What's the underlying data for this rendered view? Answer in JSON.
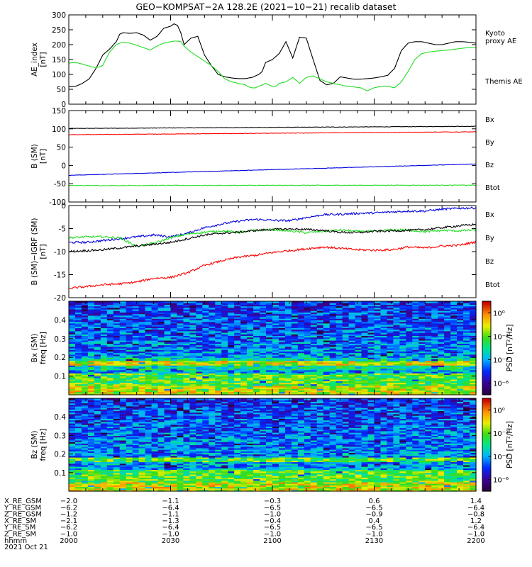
{
  "title": "GEO−KOMPSAT−2A 128.2E (2021−10−21) recalib dataset",
  "colors": {
    "black": "#000000",
    "red": "#ff0000",
    "green": "#22dd22",
    "blue": "#0000dd"
  },
  "chart_data": [
    {
      "id": "ae",
      "type": "line",
      "ylabel": "AE_index\n[nT]",
      "ylim": [
        0,
        300
      ],
      "yticks": [
        0,
        50,
        100,
        150,
        200,
        250,
        300
      ],
      "x": [
        0,
        2,
        4,
        6,
        8,
        10,
        12,
        14,
        15,
        16,
        18,
        20,
        22,
        24,
        26,
        28,
        30,
        31,
        32,
        33,
        34,
        36,
        38,
        40,
        42,
        44,
        46,
        48,
        50,
        52,
        53,
        54,
        55,
        56,
        57,
        58,
        60,
        61,
        62,
        64,
        66,
        68,
        70,
        72,
        74,
        76,
        78,
        80,
        82,
        84,
        86,
        88,
        90,
        92,
        94,
        96,
        98,
        100,
        102,
        104,
        106,
        108,
        110,
        112,
        114,
        116,
        118,
        120
      ],
      "series": [
        {
          "name": "Themis AE",
          "color": "#000000",
          "values": [
            58,
            60,
            70,
            85,
            120,
            165,
            185,
            210,
            235,
            240,
            238,
            240,
            232,
            215,
            228,
            255,
            262,
            270,
            265,
            240,
            200,
            222,
            228,
            165,
            130,
            100,
            92,
            88,
            86,
            86,
            88,
            90,
            95,
            100,
            110,
            140,
            150,
            160,
            170,
            210,
            155,
            225,
            222,
            150,
            80,
            65,
            70,
            92,
            88,
            84,
            84,
            86,
            88,
            92,
            97,
            120,
            180,
            205,
            210,
            210,
            205,
            200,
            200,
            205,
            210,
            210,
            208,
            205
          ]
        },
        {
          "name": "Kyoto proxy AE",
          "color": "#22dd22",
          "values": [
            138,
            140,
            135,
            128,
            122,
            130,
            175,
            200,
            205,
            208,
            205,
            198,
            190,
            182,
            195,
            205,
            210,
            212,
            212,
            210,
            195,
            175,
            160,
            145,
            130,
            110,
            85,
            75,
            70,
            65,
            58,
            55,
            55,
            60,
            65,
            70,
            60,
            60,
            70,
            75,
            90,
            70,
            90,
            95,
            85,
            75,
            70,
            65,
            60,
            58,
            55,
            45,
            55,
            60,
            60,
            55,
            75,
            110,
            150,
            170,
            175,
            178,
            180,
            182,
            185,
            188,
            190,
            190
          ]
        }
      ],
      "legend": [
        "Kyoto\nproxy AE",
        "Themis AE"
      ]
    },
    {
      "id": "bsm",
      "type": "line",
      "ylabel": "B (SM)\n[nT]",
      "ylim": [
        -100,
        150
      ],
      "yticks": [
        -100,
        -50,
        0,
        50,
        100,
        150
      ],
      "series": [
        {
          "name": "Btot",
          "color": "#000000",
          "start": 101,
          "end": 107,
          "noise": 0.6
        },
        {
          "name": "Bz",
          "color": "#ff0000",
          "start": 84,
          "end": 92,
          "noise": 0.6
        },
        {
          "name": "Bx",
          "color": "#0000dd",
          "start": -27,
          "end": 4,
          "noise": 0.5
        },
        {
          "name": "By",
          "color": "#22dd22",
          "start": -55,
          "end": -54,
          "noise": 0.9
        }
      ],
      "legend": [
        "Bx",
        "By",
        "Bz",
        "Btot"
      ]
    },
    {
      "id": "bres",
      "type": "line",
      "ylabel": "B (SM)−IGRF (SM)\n[nT]",
      "ylim": [
        -20,
        0
      ],
      "yticks": [
        -20,
        -15,
        -10,
        -5,
        0
      ],
      "x": [
        0,
        5,
        10,
        15,
        20,
        25,
        30,
        35,
        40,
        45,
        50,
        55,
        60,
        65,
        70,
        75,
        80,
        85,
        90,
        95,
        100,
        105,
        110,
        115,
        120
      ],
      "series": [
        {
          "name": "Bx",
          "color": "#0000dd",
          "values": [
            -8,
            -8,
            -7.6,
            -7.2,
            -6.8,
            -6.4,
            -6.8,
            -6.0,
            -4.8,
            -4.0,
            -3.4,
            -3.0,
            -3.2,
            -3.3,
            -2.6,
            -2.0,
            -1.9,
            -1.7,
            -1.6,
            -1.4,
            -1.2,
            -1.2,
            -0.8,
            -0.6,
            -0.5
          ]
        },
        {
          "name": "By",
          "color": "#22dd22",
          "values": [
            -7,
            -6.8,
            -6.8,
            -7.0,
            -8.8,
            -8.2,
            -7.0,
            -6.2,
            -5.8,
            -5.5,
            -5.8,
            -5.4,
            -5.2,
            -5.5,
            -5.9,
            -5.6,
            -5.3,
            -5.6,
            -5.6,
            -5.3,
            -5.3,
            -5.7,
            -5.4,
            -5.5,
            -5.3
          ]
        },
        {
          "name": "Bz",
          "color": "#ff0000",
          "values": [
            -18,
            -17.6,
            -17.2,
            -17,
            -16.6,
            -15.8,
            -15.6,
            -14.6,
            -13.0,
            -12.0,
            -11.2,
            -10.8,
            -10.2,
            -9.8,
            -9.4,
            -9.0,
            -9.3,
            -9.6,
            -9.7,
            -9.6,
            -9.0,
            -9.2,
            -8.8,
            -8.6,
            -7.9
          ]
        },
        {
          "name": "Btot",
          "color": "#000000",
          "values": [
            -10,
            -9.8,
            -9.6,
            -9.2,
            -8.8,
            -8.4,
            -8.0,
            -7.2,
            -6.4,
            -6.0,
            -5.8,
            -5.4,
            -5.2,
            -5.1,
            -5.2,
            -5.4,
            -5.8,
            -5.9,
            -5.6,
            -5.5,
            -5.4,
            -5.2,
            -4.8,
            -4.4,
            -4.1
          ]
        }
      ],
      "legend": [
        "Bx",
        "By",
        "Bz",
        "Btot"
      ]
    },
    {
      "id": "specx",
      "type": "heatmap",
      "ylabel": "Bx (SM)\nfreq [Hz]",
      "ylim": [
        0,
        0.5
      ],
      "yticks": [
        0.1,
        0.2,
        0.3,
        0.4
      ],
      "colorbar_label": "PSD [nT²/Hz]",
      "colorbar_ticks": [
        "10⁰",
        "10⁻²",
        "10⁻⁴",
        "10⁻⁶"
      ],
      "log10_range": [
        -7,
        1
      ]
    },
    {
      "id": "specz",
      "type": "heatmap",
      "ylabel": "Bz (SM)\nfreq [Hz]",
      "ylim": [
        0,
        0.5
      ],
      "yticks": [
        0.1,
        0.2,
        0.3,
        0.4
      ],
      "colorbar_label": "PSD [nT²/Hz]",
      "colorbar_ticks": [
        "10⁰",
        "10⁻²",
        "10⁻⁴",
        "10⁻⁶"
      ],
      "log10_range": [
        -7,
        1
      ]
    }
  ],
  "ephemeris": {
    "rows": [
      {
        "label": "X_RE_GSM",
        "values": [
          "−2.0",
          "−1.1",
          "−0.3",
          "0.6",
          "1.4"
        ]
      },
      {
        "label": "Y_RE_GSM",
        "values": [
          "−6.2",
          "−6.4",
          "−6.5",
          "−6.5",
          "−6.4"
        ]
      },
      {
        "label": "Z_RE_GSM",
        "values": [
          "−1.2",
          "−1.1",
          "−1.0",
          "−0.9",
          "−0.8"
        ]
      },
      {
        "label": "X_RE_SM",
        "values": [
          "−2.1",
          "−1.3",
          "−0.4",
          "0.4",
          "1.2"
        ]
      },
      {
        "label": "Y_RE_SM",
        "values": [
          "−6.2",
          "−6.4",
          "−6.5",
          "−6.5",
          "−6.4"
        ]
      },
      {
        "label": "Z_RE_SM",
        "values": [
          "−1.0",
          "−1.0",
          "−1.0",
          "−1.0",
          "−1.0"
        ]
      },
      {
        "label": "hhmm",
        "values": [
          "2000",
          "2030",
          "2100",
          "2130",
          "2200"
        ]
      }
    ],
    "date": "2021 Oct 21"
  }
}
